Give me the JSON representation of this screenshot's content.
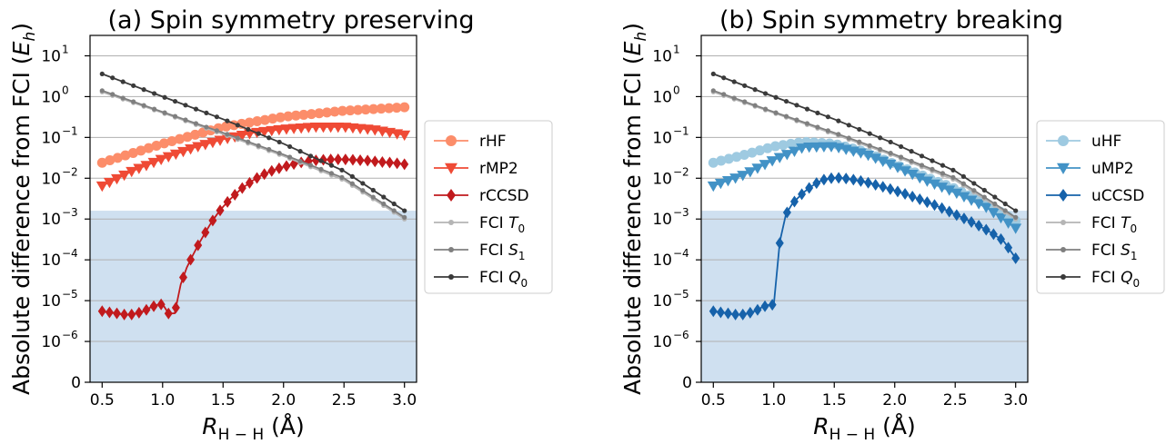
{
  "chart_data": [
    {
      "type": "line",
      "title": "(a) Spin symmetry preserving",
      "xlabel": "R_{H-H} (Å)",
      "ylabel": "Absolute difference from FCI (E_h)",
      "xlim": [
        0.4,
        3.1
      ],
      "ylim_log10": [
        -7,
        1.5
      ],
      "yscale": "symlog",
      "xticks": [
        0.5,
        1.0,
        1.5,
        2.0,
        2.5,
        3.0
      ],
      "xtick_labels": [
        "0.5",
        "1.0",
        "1.5",
        "2.0",
        "2.5",
        "3.0"
      ],
      "yticks_log10": [
        -6,
        -5,
        -4,
        -3,
        -2,
        -1,
        0,
        1
      ],
      "ytick_labels": [
        {
          "base": "10",
          "exp": "−6"
        },
        {
          "base": "10",
          "exp": "−5"
        },
        {
          "base": "10",
          "exp": "−4"
        },
        {
          "base": "10",
          "exp": "−3"
        },
        {
          "base": "10",
          "exp": "−2"
        },
        {
          "base": "10",
          "exp": "−1"
        },
        {
          "base": "10",
          "exp": "0"
        },
        {
          "base": "10",
          "exp": "1"
        }
      ],
      "zero_label": "0",
      "grid": "horizontal",
      "shaded_threshold": 0.0016,
      "legend_position": "outside-right",
      "series": [
        {
          "name": "rHF",
          "color": "#fc8d6a",
          "marker": "circle",
          "points": [
            [
              0.5,
              0.024
            ],
            [
              1.0,
              0.07
            ],
            [
              1.5,
              0.18
            ],
            [
              2.0,
              0.32
            ],
            [
              2.5,
              0.45
            ],
            [
              3.0,
              0.55
            ]
          ]
        },
        {
          "name": "rMP2",
          "color": "#ef4a35",
          "marker": "triangle-down",
          "points": [
            [
              0.5,
              0.0065
            ],
            [
              0.75,
              0.015
            ],
            [
              1.0,
              0.03
            ],
            [
              1.25,
              0.055
            ],
            [
              1.5,
              0.09
            ],
            [
              1.75,
              0.13
            ],
            [
              2.0,
              0.16
            ],
            [
              2.25,
              0.18
            ],
            [
              2.5,
              0.18
            ],
            [
              2.75,
              0.155
            ],
            [
              3.0,
              0.115
            ]
          ]
        },
        {
          "name": "rCCSD",
          "color": "#c11a1d",
          "marker": "diamond",
          "points": [
            [
              0.5,
              5.5e-06
            ],
            [
              0.55,
              5.2e-06
            ],
            [
              0.6,
              5e-06
            ],
            [
              0.65,
              4.7e-06
            ],
            [
              0.7,
              4.5e-06
            ],
            [
              0.75,
              4.6e-06
            ],
            [
              0.8,
              5e-06
            ],
            [
              0.85,
              5.6e-06
            ],
            [
              0.9,
              6.8e-06
            ],
            [
              0.95,
              7.8e-06
            ],
            [
              1.0,
              8.2e-06
            ],
            [
              1.05,
              4.8e-06
            ],
            [
              1.1,
              4.9e-06
            ],
            [
              1.15,
              2.5e-05
            ],
            [
              1.2,
              6.5e-05
            ],
            [
              1.25,
              0.00013
            ],
            [
              1.3,
              0.00025
            ],
            [
              1.35,
              0.00045
            ],
            [
              1.4,
              0.0008
            ],
            [
              1.45,
              0.0013
            ],
            [
              1.5,
              0.002
            ],
            [
              1.55,
              0.0029
            ],
            [
              1.6,
              0.004
            ],
            [
              1.65,
              0.0055
            ],
            [
              1.7,
              0.007
            ],
            [
              1.75,
              0.009
            ],
            [
              1.8,
              0.011
            ],
            [
              1.85,
              0.013
            ],
            [
              1.9,
              0.015
            ],
            [
              1.95,
              0.017
            ],
            [
              2.0,
              0.019
            ],
            [
              2.1,
              0.023
            ],
            [
              2.2,
              0.026
            ],
            [
              2.3,
              0.028
            ],
            [
              2.4,
              0.029
            ],
            [
              2.5,
              0.029
            ],
            [
              2.6,
              0.028
            ],
            [
              2.7,
              0.027
            ],
            [
              2.8,
              0.025
            ],
            [
              2.9,
              0.024
            ],
            [
              3.0,
              0.022
            ]
          ]
        },
        {
          "name": "FCI T_0",
          "color": "#b5b5b5",
          "marker": "dot",
          "points": [
            [
              0.5,
              1.3
            ],
            [
              1.0,
              0.4
            ],
            [
              1.5,
              0.12
            ],
            [
              2.0,
              0.035
            ],
            [
              2.5,
              0.009
            ],
            [
              3.0,
              0.001
            ]
          ]
        },
        {
          "name": "FCI S_1",
          "color": "#7f7f7f",
          "marker": "dot",
          "points": [
            [
              0.5,
              1.4
            ],
            [
              1.0,
              0.42
            ],
            [
              1.5,
              0.13
            ],
            [
              2.0,
              0.038
            ],
            [
              2.5,
              0.01
            ],
            [
              3.0,
              0.0011
            ]
          ]
        },
        {
          "name": "FCI Q_0",
          "color": "#3a3a3a",
          "marker": "dot",
          "points": [
            [
              0.5,
              3.6
            ],
            [
              1.0,
              1.0
            ],
            [
              1.5,
              0.28
            ],
            [
              2.0,
              0.07
            ],
            [
              2.5,
              0.015
            ],
            [
              3.0,
              0.0016
            ]
          ]
        }
      ],
      "legend": [
        {
          "base": "rHF",
          "sub": ""
        },
        {
          "base": "rMP2",
          "sub": ""
        },
        {
          "base": "rCCSD",
          "sub": ""
        },
        {
          "base": "FCI ",
          "italic": "T",
          "sub": "0"
        },
        {
          "base": "FCI ",
          "italic": "S",
          "sub": "1"
        },
        {
          "base": "FCI ",
          "italic": "Q",
          "sub": "0"
        }
      ]
    },
    {
      "type": "line",
      "title": "(b) Spin symmetry breaking",
      "xlabel": "R_{H-H} (Å)",
      "ylabel": "Absolute difference from FCI (E_h)",
      "xlim": [
        0.4,
        3.1
      ],
      "ylim_log10": [
        -7,
        1.5
      ],
      "yscale": "symlog",
      "xticks": [
        0.5,
        1.0,
        1.5,
        2.0,
        2.5,
        3.0
      ],
      "xtick_labels": [
        "0.5",
        "1.0",
        "1.5",
        "2.0",
        "2.5",
        "3.0"
      ],
      "yticks_log10": [
        -6,
        -5,
        -4,
        -3,
        -2,
        -1,
        0,
        1
      ],
      "ytick_labels": [
        {
          "base": "10",
          "exp": "−6"
        },
        {
          "base": "10",
          "exp": "−5"
        },
        {
          "base": "10",
          "exp": "−4"
        },
        {
          "base": "10",
          "exp": "−3"
        },
        {
          "base": "10",
          "exp": "−2"
        },
        {
          "base": "10",
          "exp": "−1"
        },
        {
          "base": "10",
          "exp": "0"
        },
        {
          "base": "10",
          "exp": "1"
        }
      ],
      "zero_label": "0",
      "grid": "horizontal",
      "shaded_threshold": 0.0016,
      "legend_position": "outside-right",
      "series": [
        {
          "name": "uHF",
          "color": "#9ecae1",
          "marker": "circle",
          "points": [
            [
              0.5,
              0.024
            ],
            [
              0.75,
              0.037
            ],
            [
              1.0,
              0.06
            ],
            [
              1.25,
              0.078
            ],
            [
              1.5,
              0.07
            ],
            [
              1.75,
              0.045
            ],
            [
              2.0,
              0.022
            ],
            [
              2.25,
              0.011
            ],
            [
              2.5,
              0.0055
            ],
            [
              2.75,
              0.0025
            ],
            [
              3.0,
              0.0009
            ]
          ]
        },
        {
          "name": "uMP2",
          "color": "#4292c6",
          "marker": "triangle-down",
          "points": [
            [
              0.5,
              0.0065
            ],
            [
              0.75,
              0.012
            ],
            [
              1.0,
              0.028
            ],
            [
              1.25,
              0.058
            ],
            [
              1.5,
              0.06
            ],
            [
              1.75,
              0.04
            ],
            [
              2.0,
              0.02
            ],
            [
              2.25,
              0.009
            ],
            [
              2.5,
              0.0045
            ],
            [
              2.75,
              0.002
            ],
            [
              3.0,
              0.0006
            ]
          ]
        },
        {
          "name": "uCCSD",
          "color": "#1662aa",
          "marker": "diamond",
          "points": [
            [
              0.5,
              5.5e-06
            ],
            [
              0.55,
              5.2e-06
            ],
            [
              0.6,
              5e-06
            ],
            [
              0.65,
              4.7e-06
            ],
            [
              0.7,
              4.5e-06
            ],
            [
              0.75,
              4.6e-06
            ],
            [
              0.8,
              5e-06
            ],
            [
              0.85,
              5.6e-06
            ],
            [
              0.9,
              6.8e-06
            ],
            [
              0.95,
              7.8e-06
            ],
            [
              1.0,
              8e-06
            ],
            [
              1.05,
              0.00028
            ],
            [
              1.1,
              0.0013
            ],
            [
              1.15,
              0.0023
            ],
            [
              1.2,
              0.0033
            ],
            [
              1.25,
              0.0046
            ],
            [
              1.3,
              0.006
            ],
            [
              1.35,
              0.0075
            ],
            [
              1.4,
              0.009
            ],
            [
              1.45,
              0.0098
            ],
            [
              1.5,
              0.0102
            ],
            [
              1.55,
              0.0102
            ],
            [
              1.6,
              0.0098
            ],
            [
              1.7,
              0.0088
            ],
            [
              1.8,
              0.0075
            ],
            [
              1.9,
              0.0062
            ],
            [
              2.0,
              0.005
            ],
            [
              2.1,
              0.004
            ],
            [
              2.2,
              0.0031
            ],
            [
              2.3,
              0.0024
            ],
            [
              2.4,
              0.0018
            ],
            [
              2.5,
              0.0013
            ],
            [
              2.6,
              0.00095
            ],
            [
              2.7,
              0.00068
            ],
            [
              2.8,
              0.00046
            ],
            [
              2.9,
              0.00029
            ],
            [
              3.0,
              0.00011
            ]
          ]
        },
        {
          "name": "FCI T_0",
          "color": "#b5b5b5",
          "marker": "dot",
          "points": [
            [
              0.5,
              1.3
            ],
            [
              1.0,
              0.4
            ],
            [
              1.5,
              0.12
            ],
            [
              2.0,
              0.035
            ],
            [
              2.5,
              0.009
            ],
            [
              3.0,
              0.001
            ]
          ]
        },
        {
          "name": "FCI S_1",
          "color": "#7f7f7f",
          "marker": "dot",
          "points": [
            [
              0.5,
              1.4
            ],
            [
              1.0,
              0.42
            ],
            [
              1.5,
              0.13
            ],
            [
              2.0,
              0.038
            ],
            [
              2.5,
              0.01
            ],
            [
              3.0,
              0.0011
            ]
          ]
        },
        {
          "name": "FCI Q_0",
          "color": "#3a3a3a",
          "marker": "dot",
          "points": [
            [
              0.5,
              3.6
            ],
            [
              1.0,
              1.0
            ],
            [
              1.5,
              0.28
            ],
            [
              2.0,
              0.07
            ],
            [
              2.5,
              0.015
            ],
            [
              3.0,
              0.0016
            ]
          ]
        }
      ],
      "legend": [
        {
          "base": "uHF",
          "sub": ""
        },
        {
          "base": "uMP2",
          "sub": ""
        },
        {
          "base": "uCCSD",
          "sub": ""
        },
        {
          "base": "FCI ",
          "italic": "T",
          "sub": "0"
        },
        {
          "base": "FCI ",
          "italic": "S",
          "sub": "1"
        },
        {
          "base": "FCI ",
          "italic": "Q",
          "sub": "0"
        }
      ]
    }
  ],
  "style": {
    "shade_color": "#cfe0f0",
    "grid_color": "#b0b0b0",
    "axis_color": "#000000"
  }
}
